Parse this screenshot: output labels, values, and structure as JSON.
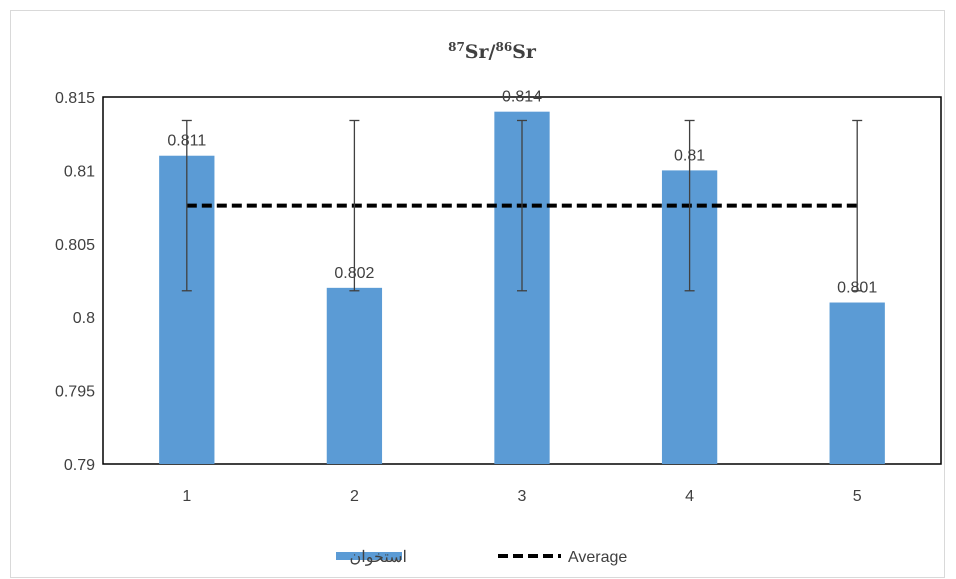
{
  "chart_data": {
    "type": "bar",
    "title": {
      "pre_sup_1": "87",
      "part_1": "Sr/",
      "pre_sup_2": "86",
      "part_2": "Sr"
    },
    "categories": [
      "1",
      "2",
      "3",
      "4",
      "5"
    ],
    "series": [
      {
        "name": "استخوان",
        "type": "bar",
        "color": "#5b9bd5",
        "values": [
          0.811,
          0.802,
          0.814,
          0.81,
          0.801
        ],
        "data_labels": [
          "0.811",
          "0.802",
          "0.814",
          "0.81",
          "0.801"
        ],
        "error_bars": {
          "minus": 0.0058,
          "plus": 0.0058
        }
      },
      {
        "name": "Average",
        "type": "line",
        "style": "dashed",
        "color": "#000000",
        "values": [
          0.8076,
          0.8076,
          0.8076,
          0.8076,
          0.8076
        ]
      }
    ],
    "ylim": [
      0.79,
      0.815
    ],
    "y_ticks": [
      "0.79",
      "0.795",
      "0.8",
      "0.805",
      "0.81",
      "0.815"
    ],
    "xlabel": "",
    "ylabel": "",
    "grid": false,
    "legend_position": "bottom"
  }
}
